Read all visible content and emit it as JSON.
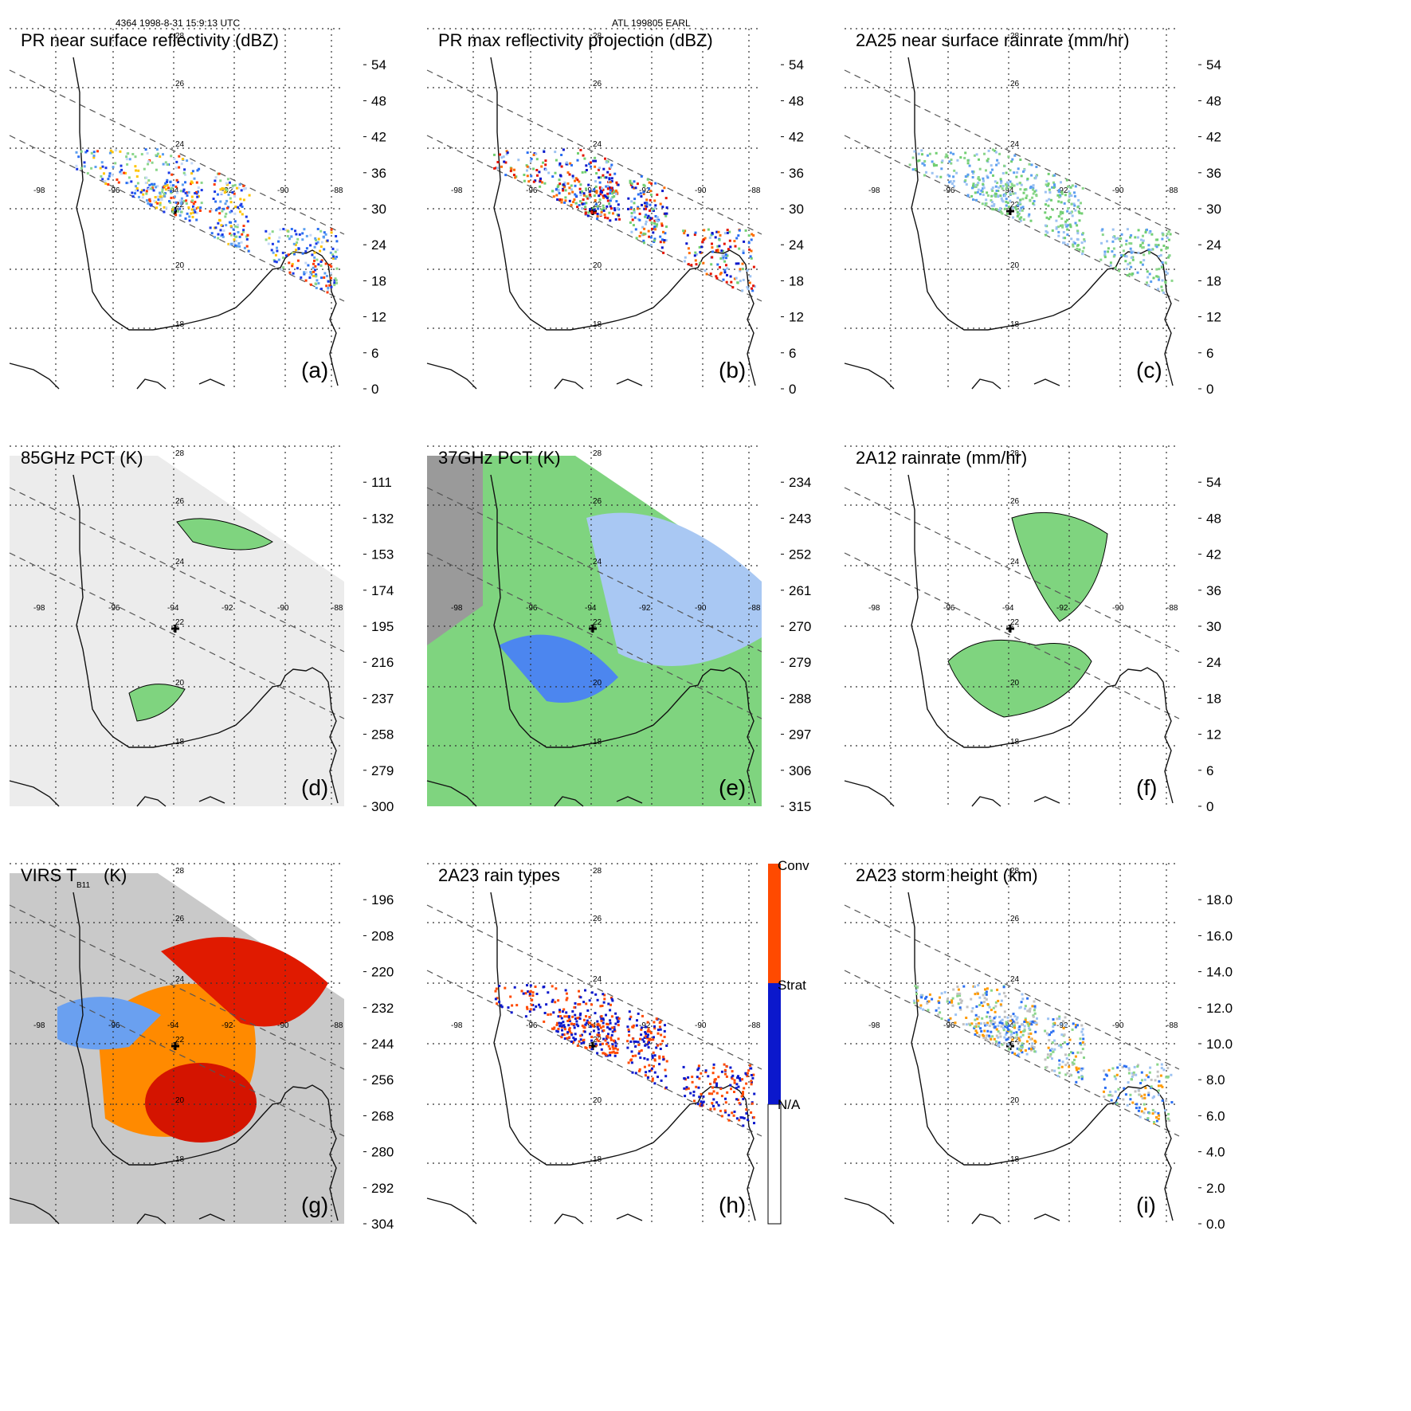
{
  "header": {
    "left": "4364 1998-8-31 15:9:13 UTC",
    "center": "ATL 199805 EARL"
  },
  "lon_ticks": [
    "-98",
    "-96",
    "-94",
    "-92",
    "-90",
    "-88"
  ],
  "lat_ticks": [
    "28",
    "26",
    "24",
    "22",
    "20",
    "18"
  ],
  "colors": {
    "scale": [
      "#f4f4f4",
      "#dcdcdc",
      "#c2c2c2",
      "#a8a8a8",
      "#8ad68a",
      "#72cf72",
      "#c4d8f6",
      "#9cc2f2",
      "#5c9ff0",
      "#2a6ef2",
      "#1a38e6",
      "#0b18cc",
      "#ffee00",
      "#ffc400",
      "#ff9a00",
      "#ff6c00",
      "#ff3a00",
      "#e61400",
      "#c80a00",
      "#9a0600",
      "#6a0400",
      "#3a0200"
    ],
    "rain_type": [
      "#ffffff",
      "#0b18cc",
      "#ff4a00"
    ]
  },
  "panels": [
    {
      "id": "a",
      "title": "PR near surface reflectivity (dBZ)",
      "label": "(a)",
      "colorbar": [
        "0",
        "6",
        "12",
        "18",
        "24",
        "30",
        "36",
        "42",
        "48",
        "54"
      ]
    },
    {
      "id": "b",
      "title": "PR max reflectivity projection (dBZ)",
      "label": "(b)",
      "colorbar": [
        "0",
        "6",
        "12",
        "18",
        "24",
        "30",
        "36",
        "42",
        "48",
        "54"
      ]
    },
    {
      "id": "c",
      "title": "2A25 near surface rainrate (mm/hr)",
      "label": "(c)",
      "colorbar": [
        "0",
        "6",
        "12",
        "18",
        "24",
        "30",
        "36",
        "42",
        "48",
        "54"
      ]
    },
    {
      "id": "d",
      "title": "85GHz PCT (K)",
      "label": "(d)",
      "colorbar": [
        "300",
        "279",
        "258",
        "237",
        "216",
        "195",
        "174",
        "153",
        "132",
        "111"
      ]
    },
    {
      "id": "e",
      "title": "37GHz PCT (K)",
      "label": "(e)",
      "colorbar": [
        "315",
        "306",
        "297",
        "288",
        "279",
        "270",
        "261",
        "252",
        "243",
        "234"
      ]
    },
    {
      "id": "f",
      "title": "2A12 rainrate (mm/hr)",
      "label": "(f)",
      "colorbar": [
        "0",
        "6",
        "12",
        "18",
        "24",
        "30",
        "36",
        "42",
        "48",
        "54"
      ]
    },
    {
      "id": "g",
      "title": "VIRS T",
      "title_sub": "B11",
      "title_units": "(K)",
      "label": "(g)",
      "colorbar": [
        "304",
        "292",
        "280",
        "268",
        "256",
        "244",
        "232",
        "220",
        "208",
        "196"
      ]
    },
    {
      "id": "h",
      "title": "2A23 rain types",
      "label": "(h)",
      "colorbar": [
        "N/A",
        "Strat",
        "Conv"
      ]
    },
    {
      "id": "i",
      "title": "2A23 storm height (km)",
      "label": "(i)",
      "colorbar": [
        "0.0",
        "2.0",
        "4.0",
        "6.0",
        "8.0",
        "10.0",
        "12.0",
        "14.0",
        "16.0",
        "18.0"
      ]
    }
  ]
}
